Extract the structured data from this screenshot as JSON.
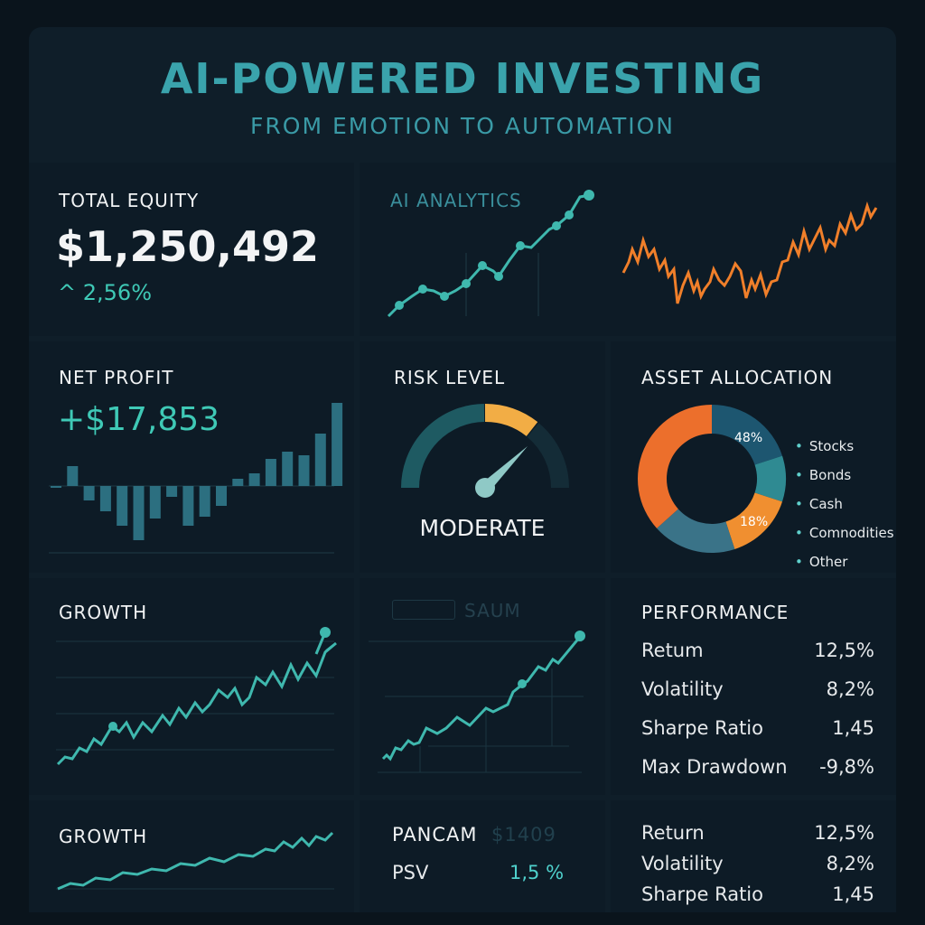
{
  "header": {
    "title": "AI-POWERED INVESTING",
    "subtitle": "FROM EMOTION TO AUTOMATION"
  },
  "total_equity": {
    "label": "TOTAL EQUITY",
    "value": "$1,250,492",
    "change": "2,56%",
    "change_icon": "chevron-up-icon"
  },
  "ai_analytics": {
    "label": "AI ANALYTICS"
  },
  "net_profit": {
    "label": "NET PROFIT",
    "value": "+$17,853"
  },
  "risk": {
    "label": "RISK LEVEL",
    "value": "MODERATE"
  },
  "allocation": {
    "label": "ASSET ALLOCATION",
    "labels": [
      "48%",
      "18%"
    ],
    "legend": [
      "Stocks",
      "Bonds",
      "Cash",
      "Comnodities",
      "Other"
    ]
  },
  "growth": {
    "label": "GROWTH"
  },
  "saum": {
    "label": "SAUM"
  },
  "performance": {
    "label": "PERFORMANCE",
    "rows": [
      {
        "k": "Retum",
        "v": "12,5%"
      },
      {
        "k": "Volatility",
        "v": "8,2%"
      },
      {
        "k": "Sharpe Ratio",
        "v": "1,45"
      },
      {
        "k": "Max Drawdown",
        "v": "-9,8%"
      }
    ]
  },
  "growth2": {
    "label": "GROWTH"
  },
  "pancam": {
    "label": "PANCAM",
    "value": "$1409",
    "psv_label": "PSV",
    "psv_value": "1,5 %"
  },
  "performance2": {
    "rows": [
      {
        "k": "Return",
        "v": "12,5%"
      },
      {
        "k": "Volatility",
        "v": "8,2%"
      },
      {
        "k": "Sharpe Ratio",
        "v": "1,45"
      }
    ]
  },
  "colors": {
    "teal": "#3fb8ae",
    "orange": "#f07f2a",
    "title": "#3aa3ac"
  }
}
